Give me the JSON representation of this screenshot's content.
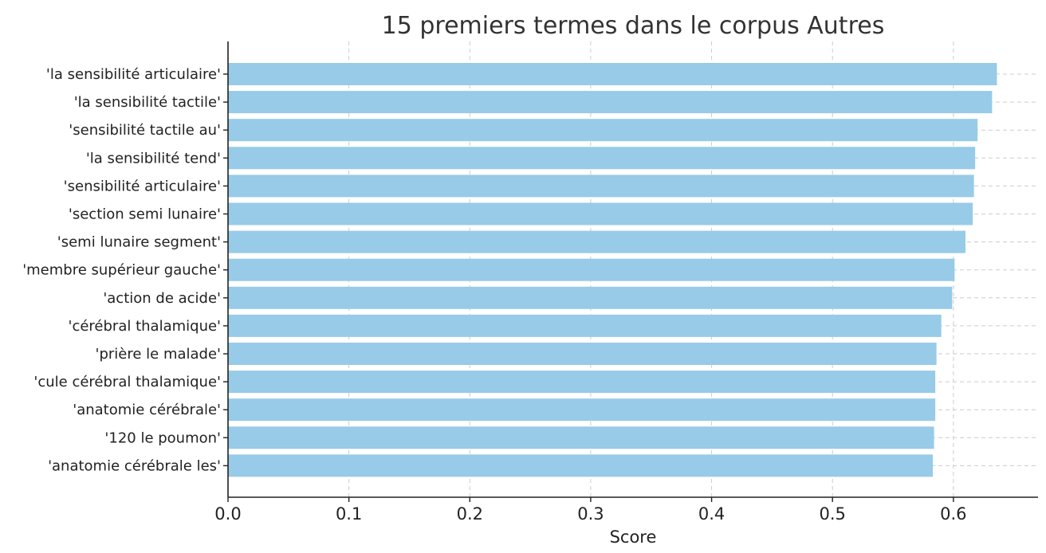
{
  "colors": {
    "bar": "#97cbe7",
    "grid": "#cccccc",
    "axis": "#222222",
    "title": "#333333"
  },
  "chart_data": {
    "type": "bar",
    "orientation": "horizontal",
    "title": "15 premiers termes dans le corpus Autres",
    "xlabel": "Score",
    "ylabel": "",
    "xlim": [
      0,
      0.67
    ],
    "x_ticks": [
      0.0,
      0.1,
      0.2,
      0.3,
      0.4,
      0.5,
      0.6
    ],
    "x_tick_labels": [
      "0.0",
      "0.1",
      "0.2",
      "0.3",
      "0.4",
      "0.5",
      "0.6"
    ],
    "grid": true,
    "categories": [
      "'la sensibilité articulaire'",
      "'la sensibilité tactile'",
      "'sensibilité tactile au'",
      "'la sensibilité tend'",
      "'sensibilité articulaire'",
      "'section semi lunaire'",
      "'semi lunaire segment'",
      "'membre supérieur gauche'",
      "'action de acide'",
      "'cérébral thalamique'",
      "'prière le malade'",
      "'cule cérébral thalamique'",
      "'anatomie cérébrale'",
      "'120 le poumon'",
      "'anatomie cérébrale les'"
    ],
    "values": [
      0.636,
      0.632,
      0.62,
      0.618,
      0.617,
      0.616,
      0.61,
      0.601,
      0.599,
      0.59,
      0.586,
      0.585,
      0.585,
      0.584,
      0.583
    ]
  }
}
